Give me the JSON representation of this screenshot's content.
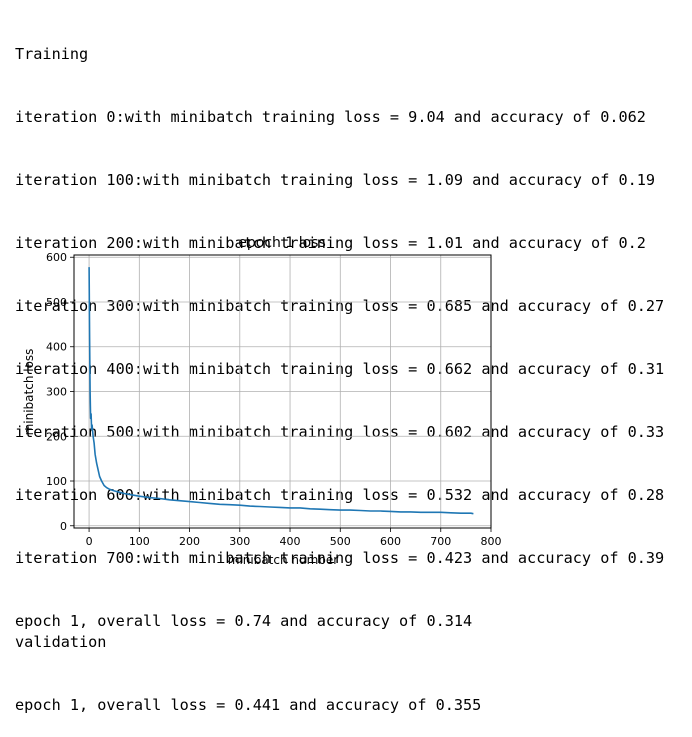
{
  "training_log": {
    "header": "Training",
    "lines": [
      "iteration 0:with minibatch training loss = 9.04 and accuracy of 0.062",
      "iteration 100:with minibatch training loss = 1.09 and accuracy of 0.19",
      "iteration 200:with minibatch training loss = 1.01 and accuracy of 0.2",
      "iteration 300:with minibatch training loss = 0.685 and accuracy of 0.27",
      "iteration 400:with minibatch training loss = 0.662 and accuracy of 0.31",
      "iteration 500:with minibatch training loss = 0.602 and accuracy of 0.33",
      "iteration 600:with minibatch training loss = 0.532 and accuracy of 0.28",
      "iteration 700:with minibatch training loss = 0.423 and accuracy of 0.39"
    ],
    "epoch_summary": "epoch 1, overall loss = 0.74 and accuracy of 0.314"
  },
  "validation_log": {
    "header": "validation",
    "epoch_summary": "epoch 1, overall loss = 0.441 and accuracy of 0.355"
  },
  "chart_data": {
    "type": "line",
    "title": "epoch 1 loss",
    "xlabel": "minibatch number",
    "ylabel": "minibatch loss",
    "xlim": [
      -30,
      800
    ],
    "ylim": [
      -5,
      605
    ],
    "xticks": [
      0,
      100,
      200,
      300,
      400,
      500,
      600,
      700,
      800
    ],
    "yticks": [
      0,
      100,
      200,
      300,
      400,
      500,
      600
    ],
    "grid": true,
    "series": [
      {
        "color": "#1f77b4",
        "x": [
          0,
          1,
          2,
          3,
          4,
          5,
          6,
          8,
          10,
          12,
          15,
          18,
          21,
          25,
          30,
          35,
          40,
          50,
          60,
          70,
          80,
          90,
          100,
          120,
          140,
          160,
          180,
          200,
          220,
          240,
          260,
          280,
          300,
          320,
          340,
          360,
          380,
          400,
          420,
          440,
          460,
          480,
          500,
          520,
          540,
          560,
          580,
          600,
          620,
          640,
          660,
          680,
          700,
          720,
          740,
          760,
          765
        ],
        "y": [
          578,
          420,
          300,
          240,
          250,
          215,
          225,
          200,
          185,
          160,
          140,
          125,
          110,
          100,
          90,
          85,
          82,
          78,
          75,
          72,
          70,
          68,
          66,
          63,
          61,
          58,
          56,
          54,
          52,
          50,
          48,
          47,
          46,
          44,
          43,
          42,
          41,
          40,
          40,
          38,
          37,
          36,
          35,
          35,
          34,
          33,
          33,
          32,
          31,
          31,
          30,
          30,
          30,
          29,
          28,
          28,
          27
        ]
      }
    ]
  }
}
